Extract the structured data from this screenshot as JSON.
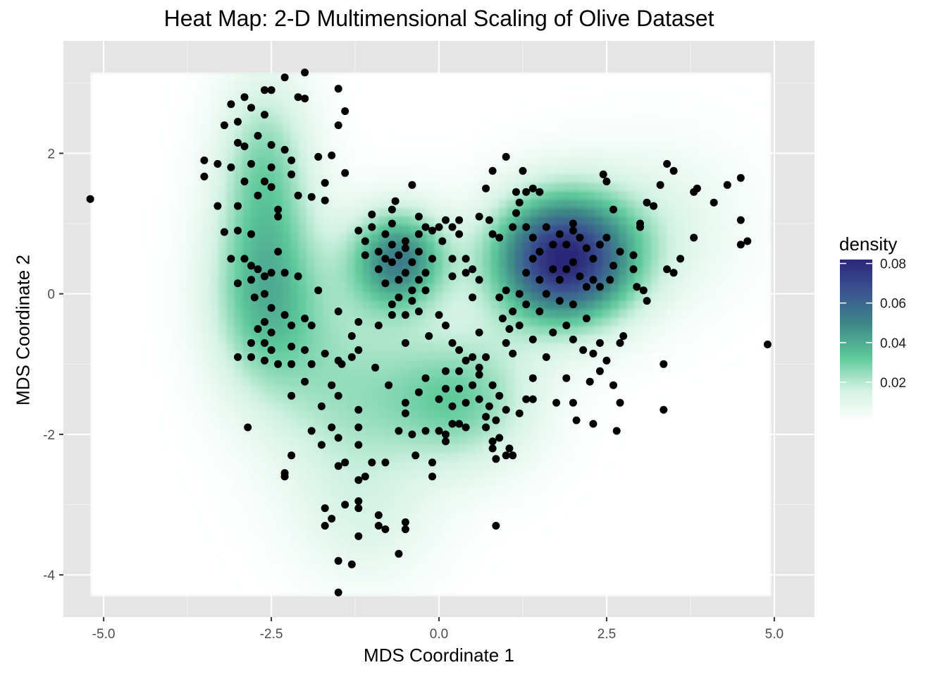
{
  "chart_data": {
    "type": "heatmap",
    "title": "Heat Map:  2-D Multimensional Scaling of Olive Dataset",
    "xlabel": "MDS Coordinate 1",
    "ylabel": "MDS Coordinate 2",
    "xlim": [
      -5.6,
      5.6
    ],
    "ylim": [
      -4.6,
      3.6
    ],
    "x_ticks": [
      -5.0,
      -2.5,
      0.0,
      2.5,
      5.0
    ],
    "x_tick_labels": [
      "-5.0",
      "-2.5",
      "0.0",
      "2.5",
      "5.0"
    ],
    "y_ticks": [
      -4,
      -2,
      0,
      2
    ],
    "y_tick_labels": [
      "-4",
      "-2",
      "0",
      "2"
    ],
    "grid": true,
    "background_color": "#e5e5e5",
    "legend": {
      "title": "density",
      "placement": "right",
      "ticks": [
        0.02,
        0.04,
        0.06,
        0.08
      ],
      "tick_labels": [
        "0.02",
        "0.04",
        "0.06",
        "0.08"
      ],
      "range": [
        0.0,
        0.082
      ],
      "colors": [
        "#ffffff",
        "#d2f2e3",
        "#5ec99b",
        "#3e8a88",
        "#3b5691",
        "#2c287a"
      ]
    },
    "density_clusters": [
      {
        "x": 1.85,
        "y": 0.5,
        "sx": 0.75,
        "sy": 0.65,
        "weight": 0.082
      },
      {
        "x": -0.6,
        "y": 0.5,
        "sx": 0.5,
        "sy": 0.5,
        "weight": 0.05
      },
      {
        "x": -2.6,
        "y": 0.0,
        "sx": 0.6,
        "sy": 1.0,
        "weight": 0.035
      },
      {
        "x": -2.6,
        "y": 1.9,
        "sx": 0.5,
        "sy": 0.9,
        "weight": 0.024
      },
      {
        "x": 0.3,
        "y": -1.5,
        "sx": 0.8,
        "sy": 0.7,
        "weight": 0.03
      },
      {
        "x": -1.4,
        "y": -1.4,
        "sx": 0.8,
        "sy": 1.2,
        "weight": 0.02
      },
      {
        "x": 3.3,
        "y": 1.0,
        "sx": 0.9,
        "sy": 0.8,
        "weight": 0.01
      },
      {
        "x": -1.0,
        "y": -3.3,
        "sx": 0.7,
        "sy": 0.6,
        "weight": 0.008
      }
    ],
    "point_color": "#000000",
    "points": [
      [
        -5.2,
        1.35
      ],
      [
        4.9,
        -0.72
      ],
      [
        -2.0,
        3.15
      ],
      [
        -2.3,
        3.08
      ],
      [
        -1.5,
        2.92
      ],
      [
        -1.4,
        2.6
      ],
      [
        -1.5,
        2.4
      ],
      [
        -2.6,
        2.9
      ],
      [
        -2.9,
        2.8
      ],
      [
        -3.1,
        2.7
      ],
      [
        -2.5,
        2.9
      ],
      [
        -2.1,
        2.8
      ],
      [
        -2.0,
        2.78
      ],
      [
        -2.8,
        2.65
      ],
      [
        -2.6,
        2.55
      ],
      [
        -3.0,
        2.45
      ],
      [
        -3.2,
        2.4
      ],
      [
        -2.7,
        2.25
      ],
      [
        -2.3,
        2.05
      ],
      [
        -2.2,
        1.9
      ],
      [
        -1.8,
        1.95
      ],
      [
        -1.6,
        1.97
      ],
      [
        -3.0,
        2.15
      ],
      [
        -2.9,
        2.1
      ],
      [
        -2.5,
        2.12
      ],
      [
        -3.5,
        1.9
      ],
      [
        -3.3,
        1.85
      ],
      [
        -3.1,
        1.8
      ],
      [
        -2.8,
        1.85
      ],
      [
        -2.5,
        1.8
      ],
      [
        -2.6,
        1.6
      ],
      [
        -2.9,
        1.6
      ],
      [
        -2.2,
        1.7
      ],
      [
        -1.7,
        1.58
      ],
      [
        -1.4,
        1.72
      ],
      [
        -3.5,
        1.67
      ],
      [
        -3.3,
        1.25
      ],
      [
        -3.0,
        1.25
      ],
      [
        -2.7,
        1.4
      ],
      [
        -2.5,
        1.52
      ],
      [
        -2.4,
        1.2
      ],
      [
        -2.4,
        1.1
      ],
      [
        -2.1,
        1.4
      ],
      [
        -1.9,
        1.38
      ],
      [
        -1.7,
        1.33
      ],
      [
        -3.0,
        0.9
      ],
      [
        -3.2,
        0.88
      ],
      [
        -2.8,
        0.85
      ],
      [
        -2.4,
        0.6
      ],
      [
        -3.1,
        0.5
      ],
      [
        -2.9,
        0.5
      ],
      [
        -2.8,
        0.4
      ],
      [
        -2.7,
        0.35
      ],
      [
        -2.6,
        0.25
      ],
      [
        -2.8,
        0.2
      ],
      [
        -2.5,
        0.3
      ],
      [
        -2.3,
        0.3
      ],
      [
        -2.1,
        0.25
      ],
      [
        -3.0,
        0.15
      ],
      [
        -2.6,
        0.0
      ],
      [
        -2.75,
        -0.05
      ],
      [
        -2.5,
        -0.2
      ],
      [
        -2.3,
        -0.3
      ],
      [
        -2.6,
        -0.4
      ],
      [
        -2.7,
        -0.5
      ],
      [
        -2.5,
        -0.55
      ],
      [
        -2.2,
        -0.45
      ],
      [
        -2.0,
        -0.35
      ],
      [
        -1.9,
        -0.45
      ],
      [
        -1.8,
        0.05
      ],
      [
        -2.8,
        -0.7
      ],
      [
        -2.6,
        -0.7
      ],
      [
        -2.5,
        -0.8
      ],
      [
        -2.2,
        -0.75
      ],
      [
        -2.0,
        -0.8
      ],
      [
        -3.0,
        -0.9
      ],
      [
        -2.8,
        -0.9
      ],
      [
        -2.6,
        -0.95
      ],
      [
        -2.4,
        -1.0
      ],
      [
        -2.2,
        -1.0
      ],
      [
        -1.9,
        -1.0
      ],
      [
        -1.7,
        -0.85
      ],
      [
        -1.5,
        -0.95
      ],
      [
        -1.45,
        -1.0
      ],
      [
        -1.3,
        -0.9
      ],
      [
        -1.2,
        -0.8
      ],
      [
        -1.3,
        -0.6
      ],
      [
        -1.2,
        -0.4
      ],
      [
        -1.5,
        -0.25
      ],
      [
        -0.9,
        -0.45
      ],
      [
        -0.5,
        -0.7
      ],
      [
        -0.95,
        -1.05
      ],
      [
        -0.75,
        -1.3
      ],
      [
        -1.6,
        -1.3
      ],
      [
        -1.75,
        -1.6
      ],
      [
        -1.5,
        -1.45
      ],
      [
        -1.2,
        -1.65
      ],
      [
        -1.2,
        -1.9
      ],
      [
        -1.6,
        -1.9
      ],
      [
        -1.9,
        -1.95
      ],
      [
        -1.75,
        -2.15
      ],
      [
        -1.5,
        -2.05
      ],
      [
        -1.2,
        -2.15
      ],
      [
        -1.5,
        -2.45
      ],
      [
        -1.4,
        -2.4
      ],
      [
        -1.0,
        -2.4
      ],
      [
        -0.8,
        -2.4
      ],
      [
        -1.1,
        -2.6
      ],
      [
        -1.2,
        -2.65
      ],
      [
        -2.2,
        -2.3
      ],
      [
        -2.3,
        -2.55
      ],
      [
        -2.3,
        -2.6
      ],
      [
        -2.2,
        -1.45
      ],
      [
        -2.0,
        -1.25
      ],
      [
        -2.85,
        -1.9
      ],
      [
        -1.7,
        -3.05
      ],
      [
        -1.7,
        -3.3
      ],
      [
        -1.6,
        -3.2
      ],
      [
        -1.4,
        -3.0
      ],
      [
        -1.2,
        -2.95
      ],
      [
        -1.2,
        -3.05
      ],
      [
        -1.2,
        -3.45
      ],
      [
        -0.9,
        -3.15
      ],
      [
        -0.9,
        -3.3
      ],
      [
        -0.8,
        -3.35
      ],
      [
        -0.5,
        -3.25
      ],
      [
        -0.5,
        -3.35
      ],
      [
        -0.6,
        -3.7
      ],
      [
        -1.5,
        -3.8
      ],
      [
        -1.3,
        -3.85
      ],
      [
        -1.5,
        -4.25
      ],
      [
        -1.0,
        0.95
      ],
      [
        -0.8,
        0.85
      ],
      [
        -0.7,
        1.0
      ],
      [
        -0.7,
        1.2
      ],
      [
        -0.65,
        1.32
      ],
      [
        -0.4,
        1.55
      ],
      [
        -1.0,
        1.13
      ],
      [
        -1.2,
        0.9
      ],
      [
        -1.1,
        0.75
      ],
      [
        -1.1,
        0.55
      ],
      [
        -0.9,
        0.6
      ],
      [
        -0.8,
        0.5
      ],
      [
        -0.9,
        0.35
      ],
      [
        -0.7,
        0.45
      ],
      [
        -0.6,
        0.55
      ],
      [
        -0.5,
        0.65
      ],
      [
        -0.7,
        0.7
      ],
      [
        -0.5,
        0.75
      ],
      [
        -0.3,
        0.6
      ],
      [
        -0.3,
        0.85
      ],
      [
        -0.2,
        0.95
      ],
      [
        0.0,
        0.95
      ],
      [
        0.1,
        1.05
      ],
      [
        0.2,
        0.95
      ],
      [
        0.3,
        0.85
      ],
      [
        0.3,
        1.05
      ],
      [
        -0.3,
        1.1
      ],
      [
        -0.1,
        0.9
      ],
      [
        0.05,
        0.75
      ],
      [
        -0.5,
        0.3
      ],
      [
        -0.6,
        0.2
      ],
      [
        -0.8,
        0.15
      ],
      [
        -0.4,
        0.05
      ],
      [
        -0.6,
        -0.05
      ],
      [
        -0.7,
        -0.15
      ],
      [
        -0.4,
        -0.1
      ],
      [
        -0.3,
        0.2
      ],
      [
        -0.2,
        0.3
      ],
      [
        -0.1,
        0.5
      ],
      [
        -0.4,
        0.45
      ],
      [
        0.2,
        0.5
      ],
      [
        0.4,
        0.5
      ],
      [
        0.2,
        0.25
      ],
      [
        0.4,
        0.3
      ],
      [
        0.5,
        0.35
      ],
      [
        0.6,
        0.2
      ],
      [
        0.5,
        -0.05
      ],
      [
        -0.3,
        -0.25
      ],
      [
        0.0,
        -0.3
      ],
      [
        -0.7,
        -0.3
      ],
      [
        -0.5,
        -0.3
      ],
      [
        0.1,
        -0.45
      ],
      [
        0.2,
        -0.7
      ],
      [
        0.3,
        -0.8
      ],
      [
        0.5,
        -0.9
      ],
      [
        0.6,
        -1.05
      ],
      [
        0.4,
        -0.95
      ],
      [
        0.7,
        -0.9
      ],
      [
        0.1,
        -1.1
      ],
      [
        -0.2,
        -1.2
      ],
      [
        0.3,
        -1.1
      ],
      [
        0.6,
        -1.15
      ],
      [
        0.8,
        -1.3
      ],
      [
        0.9,
        -1.45
      ],
      [
        0.5,
        -1.3
      ],
      [
        0.3,
        -1.35
      ],
      [
        0.1,
        -1.35
      ],
      [
        0.0,
        -1.5
      ],
      [
        0.4,
        -1.55
      ],
      [
        0.6,
        -1.5
      ],
      [
        0.75,
        -1.6
      ],
      [
        0.85,
        -1.8
      ],
      [
        0.7,
        -1.75
      ],
      [
        0.2,
        -1.6
      ],
      [
        0.3,
        -1.85
      ],
      [
        0.0,
        -1.95
      ],
      [
        -0.2,
        -1.95
      ],
      [
        -0.4,
        -2.0
      ],
      [
        -0.5,
        -1.7
      ],
      [
        -0.5,
        -1.55
      ],
      [
        -0.3,
        -1.4
      ],
      [
        0.1,
        -2.0
      ],
      [
        0.2,
        -1.85
      ],
      [
        0.4,
        -1.9
      ],
      [
        0.8,
        -2.2
      ],
      [
        1.0,
        -2.3
      ],
      [
        1.1,
        -2.3
      ],
      [
        1.05,
        -2.2
      ],
      [
        0.85,
        -2.35
      ],
      [
        -0.1,
        -2.4
      ],
      [
        -0.1,
        -2.6
      ],
      [
        -0.35,
        -2.3
      ],
      [
        -0.6,
        -1.95
      ],
      [
        0.1,
        -2.1
      ],
      [
        0.7,
        -1.9
      ],
      [
        0.9,
        -2.05
      ],
      [
        0.8,
        -2.1
      ],
      [
        0.85,
        -3.3
      ],
      [
        1.0,
        1.95
      ],
      [
        0.8,
        1.75
      ],
      [
        0.7,
        1.5
      ],
      [
        0.6,
        1.1
      ],
      [
        0.75,
        1.05
      ],
      [
        0.8,
        0.85
      ],
      [
        0.9,
        0.8
      ],
      [
        1.1,
        0.95
      ],
      [
        1.15,
        1.15
      ],
      [
        1.2,
        1.3
      ],
      [
        1.3,
        1.45
      ],
      [
        1.4,
        1.5
      ],
      [
        1.5,
        1.45
      ],
      [
        1.25,
        1.75
      ],
      [
        1.15,
        1.45
      ],
      [
        1.3,
        0.95
      ],
      [
        1.4,
        0.8
      ],
      [
        1.5,
        0.6
      ],
      [
        1.7,
        0.7
      ],
      [
        1.8,
        0.85
      ],
      [
        1.9,
        0.7
      ],
      [
        2.0,
        0.9
      ],
      [
        2.1,
        0.8
      ],
      [
        2.2,
        0.65
      ],
      [
        2.3,
        0.5
      ],
      [
        2.4,
        0.7
      ],
      [
        2.5,
        0.8
      ],
      [
        2.6,
        1.2
      ],
      [
        2.5,
        1.6
      ],
      [
        2.45,
        1.7
      ],
      [
        2.0,
        1.0
      ],
      [
        1.6,
        0.95
      ],
      [
        1.4,
        0.5
      ],
      [
        1.3,
        0.3
      ],
      [
        1.5,
        0.2
      ],
      [
        1.7,
        0.35
      ],
      [
        1.8,
        0.2
      ],
      [
        1.9,
        0.35
      ],
      [
        2.0,
        0.45
      ],
      [
        2.1,
        0.25
      ],
      [
        2.2,
        0.1
      ],
      [
        2.3,
        0.2
      ],
      [
        2.4,
        0.1
      ],
      [
        2.55,
        0.2
      ],
      [
        2.6,
        0.4
      ],
      [
        2.7,
        0.6
      ],
      [
        1.6,
        0.0
      ],
      [
        1.8,
        -0.1
      ],
      [
        2.0,
        -0.15
      ],
      [
        2.2,
        -0.35
      ],
      [
        1.5,
        -0.25
      ],
      [
        1.3,
        -0.15
      ],
      [
        1.2,
        0.0
      ],
      [
        1.1,
        -0.25
      ],
      [
        1.2,
        -0.45
      ],
      [
        1.0,
        0.05
      ],
      [
        0.9,
        -0.05
      ],
      [
        0.95,
        -0.35
      ],
      [
        1.05,
        -0.5
      ],
      [
        1.0,
        -0.7
      ],
      [
        1.1,
        -0.85
      ],
      [
        1.4,
        -0.65
      ],
      [
        1.7,
        -0.55
      ],
      [
        1.9,
        -0.45
      ],
      [
        2.0,
        -0.65
      ],
      [
        2.15,
        -0.8
      ],
      [
        2.3,
        -0.85
      ],
      [
        2.4,
        -0.7
      ],
      [
        1.6,
        -0.9
      ],
      [
        1.4,
        -1.2
      ],
      [
        1.3,
        -1.5
      ],
      [
        1.2,
        -1.7
      ],
      [
        1.9,
        -1.2
      ],
      [
        2.25,
        -1.25
      ],
      [
        2.4,
        -1.1
      ],
      [
        2.6,
        -1.3
      ],
      [
        2.7,
        -1.55
      ],
      [
        2.65,
        -1.95
      ],
      [
        2.3,
        -1.85
      ],
      [
        2.05,
        -1.8
      ],
      [
        2.0,
        -1.55
      ],
      [
        1.75,
        -1.55
      ],
      [
        3.0,
        0.95
      ],
      [
        3.1,
        1.3
      ],
      [
        3.3,
        1.55
      ],
      [
        3.5,
        1.75
      ],
      [
        3.4,
        1.85
      ],
      [
        3.2,
        1.25
      ],
      [
        3.0,
        1.0
      ],
      [
        2.9,
        0.55
      ],
      [
        2.9,
        0.35
      ],
      [
        2.95,
        0.1
      ],
      [
        3.05,
        0.05
      ],
      [
        3.1,
        -0.1
      ],
      [
        3.4,
        0.35
      ],
      [
        3.5,
        0.3
      ],
      [
        3.8,
        1.45
      ],
      [
        3.85,
        1.5
      ],
      [
        4.1,
        1.3
      ],
      [
        4.3,
        1.55
      ],
      [
        4.5,
        1.65
      ],
      [
        4.5,
        1.05
      ],
      [
        4.5,
        0.7
      ],
      [
        4.6,
        0.75
      ],
      [
        3.8,
        0.8
      ],
      [
        3.6,
        0.5
      ],
      [
        3.35,
        -1.0
      ],
      [
        3.35,
        -1.65
      ],
      [
        2.75,
        -0.6
      ],
      [
        2.7,
        -0.7
      ],
      [
        2.5,
        -0.95
      ],
      [
        1.4,
        -1.5
      ],
      [
        0.6,
        -0.55
      ],
      [
        -0.15,
        -0.6
      ],
      [
        1.0,
        -1.65
      ],
      [
        -0.2,
        0.05
      ]
    ]
  }
}
